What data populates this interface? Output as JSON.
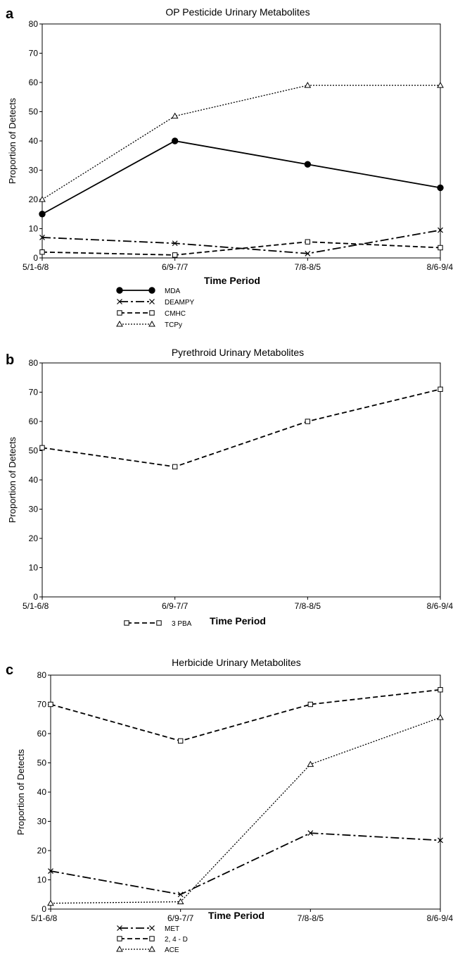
{
  "chart_data": [
    {
      "panel_label": "a",
      "type": "line",
      "title": "OP Pesticide Urinary Metabolites",
      "xlabel": "Time Period",
      "ylabel": "Proportion of Detects",
      "ylim": [
        0,
        80
      ],
      "yticks": [
        "0",
        "10",
        "20",
        "30",
        "40",
        "50",
        "60",
        "70",
        "80"
      ],
      "categories": [
        "5/1-6/8",
        "6/9-7/7",
        "7/8-8/5",
        "8/6-9/4"
      ],
      "legend_position": "bottom-left",
      "series": [
        {
          "name": "MDA",
          "values": [
            15,
            40,
            32,
            24
          ],
          "marker": "circle-filled",
          "dash": "solid"
        },
        {
          "name": "DEAMPY",
          "values": [
            7,
            5,
            1.5,
            9.5
          ],
          "marker": "x",
          "dash": "longdash-dot"
        },
        {
          "name": "CMHC",
          "values": [
            2,
            1,
            5.5,
            3.5
          ],
          "marker": "square-open",
          "dash": "dashed"
        },
        {
          "name": "TCPy",
          "values": [
            20,
            48.5,
            59,
            59
          ],
          "marker": "triangle-open",
          "dash": "dotted"
        }
      ]
    },
    {
      "panel_label": "b",
      "type": "line",
      "title": "Pyrethroid Urinary Metabolites",
      "xlabel": "Time Period",
      "ylabel": "Proportion of Detects",
      "ylim": [
        0,
        80
      ],
      "yticks": [
        "0",
        "10",
        "20",
        "30",
        "40",
        "50",
        "60",
        "70",
        "80"
      ],
      "categories": [
        "5/1-6/8",
        "6/9-7/7",
        "7/8-8/5",
        "8/6-9/4"
      ],
      "legend_position": "bottom-left",
      "series": [
        {
          "name": "3 PBA",
          "values": [
            51,
            44.5,
            60,
            71
          ],
          "marker": "square-open",
          "dash": "dashed"
        }
      ]
    },
    {
      "panel_label": "c",
      "type": "line",
      "title": "Herbicide Urinary Metabolites",
      "xlabel": "Time Period",
      "ylabel": "Proportion of Detects",
      "ylim": [
        0,
        80
      ],
      "yticks": [
        "0",
        "10",
        "20",
        "30",
        "40",
        "50",
        "60",
        "70",
        "80"
      ],
      "categories": [
        "5/1-6/8",
        "6/9-7/7",
        "7/8-8/5",
        "8/6-9/4"
      ],
      "legend_position": "bottom-left",
      "series": [
        {
          "name": "MET",
          "values": [
            13,
            5,
            26,
            23.5
          ],
          "marker": "x",
          "dash": "longdash-dot"
        },
        {
          "name": "2, 4 - D",
          "values": [
            70,
            57.5,
            70,
            75
          ],
          "marker": "square-open",
          "dash": "dashed"
        },
        {
          "name": "ACE",
          "values": [
            2,
            2.5,
            49.5,
            65.5
          ],
          "marker": "triangle-open",
          "dash": "dotted"
        }
      ]
    }
  ]
}
